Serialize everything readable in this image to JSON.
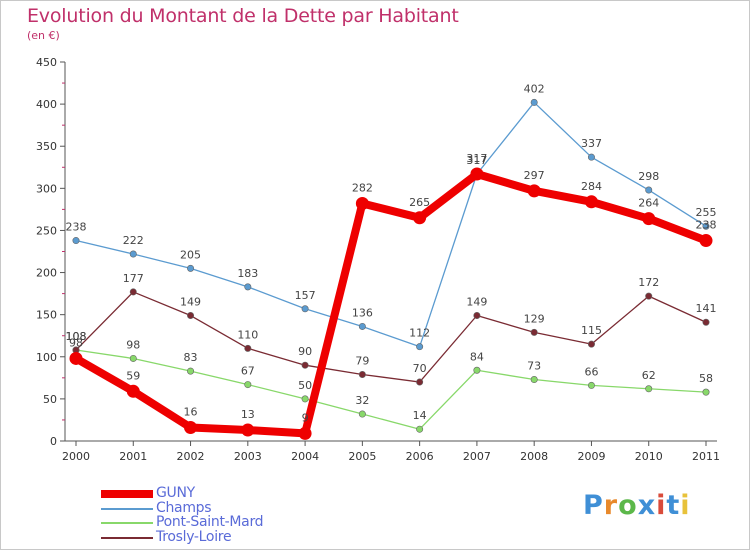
{
  "title": "Evolution du Montant de la Dette par Habitant",
  "subtitle": "(en €)",
  "logo": {
    "text": "Proxiti",
    "colors": [
      "#3f8fd6",
      "#e8892b",
      "#5cb84a",
      "#3f8fd6",
      "#d94b3a",
      "#3f8fd6",
      "#e8c23a"
    ]
  },
  "chart_data": {
    "type": "line",
    "x": [
      "2000",
      "2001",
      "2002",
      "2003",
      "2004",
      "2005",
      "2006",
      "2007",
      "2008",
      "2009",
      "2010",
      "2011"
    ],
    "ylim": [
      0,
      450
    ],
    "yticks": [
      0,
      50,
      100,
      150,
      200,
      250,
      300,
      350,
      400,
      450
    ],
    "grid": false,
    "legend_position": "bottom-left",
    "series": [
      {
        "name": "GUNY",
        "color": "#ee0000",
        "values": [
          98,
          59,
          16,
          13,
          9,
          282,
          265,
          317,
          297,
          284,
          264,
          238
        ],
        "labels": [
          "98",
          "59",
          "16",
          "13",
          "9",
          "282",
          "265",
          "317",
          "297",
          "284",
          "264",
          "238"
        ]
      },
      {
        "name": "Champs",
        "color": "#5b9bd0",
        "values": [
          238,
          222,
          205,
          183,
          157,
          136,
          112,
          317,
          402,
          337,
          298,
          255
        ],
        "labels": [
          "238",
          "222",
          "205",
          "183",
          "157",
          "136",
          "112",
          "317",
          "402",
          "337",
          "298",
          "255"
        ]
      },
      {
        "name": "Pont-Saint-Mard",
        "color": "#88d86a",
        "values": [
          108,
          98,
          83,
          67,
          50,
          32,
          14,
          84,
          73,
          66,
          62,
          58
        ],
        "labels": [
          "108",
          "98",
          "83",
          "67",
          "50",
          "32",
          "14",
          "84",
          "73",
          "66",
          "62",
          "58"
        ]
      },
      {
        "name": "Trosly-Loire",
        "color": "#7a2b33",
        "values": [
          108,
          177,
          149,
          110,
          90,
          79,
          70,
          149,
          129,
          115,
          172,
          141
        ],
        "labels": [
          "108",
          "177",
          "149",
          "110",
          "90",
          "79",
          "70",
          "149",
          "129",
          "115",
          "172",
          "141"
        ]
      }
    ]
  }
}
